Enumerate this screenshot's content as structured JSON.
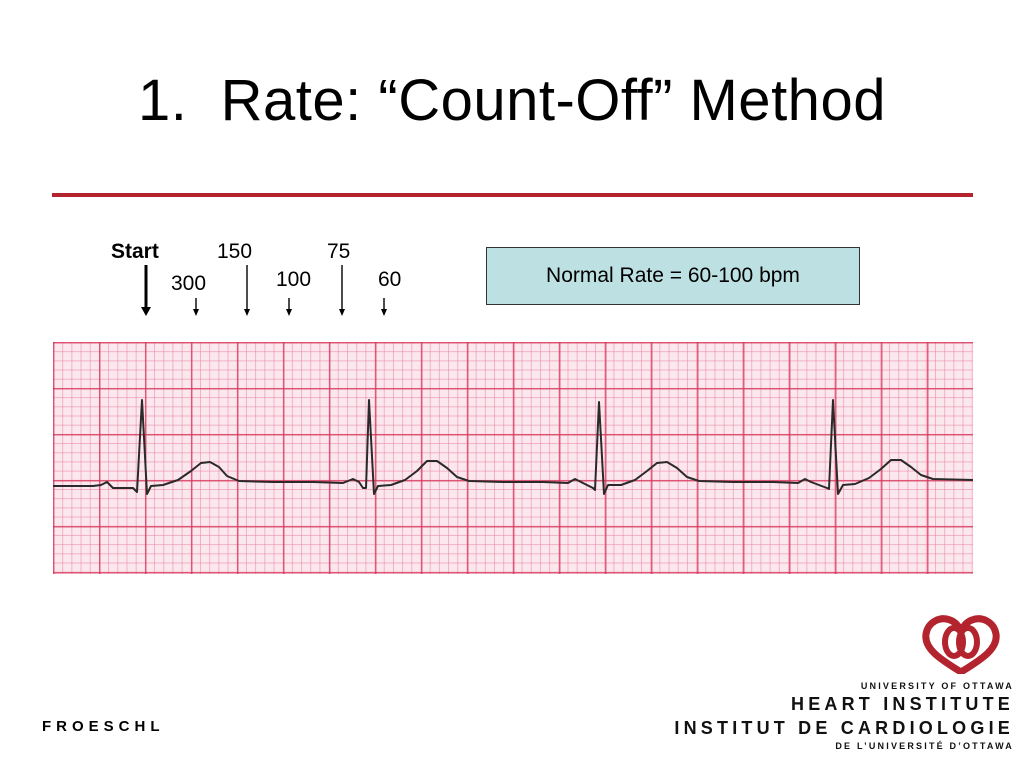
{
  "slide": {
    "title": "1.  Rate: “Count-Off” Method",
    "accent_color": "#b3242e"
  },
  "markers": {
    "start": "Start",
    "m300": "300",
    "m150": "150",
    "m100": "100",
    "m75": "75",
    "m60": "60"
  },
  "note": {
    "text": "Normal Rate = 60-100 bpm",
    "background": "#bde0e2"
  },
  "ecg": {
    "grid_color": "#d63458",
    "trace_color": "#2a2a2a"
  },
  "footer": {
    "author": "FROESCHL"
  },
  "logo": {
    "icon": "heart-rings-icon",
    "university": "UNIVERSITY OF OTTAWA",
    "heart_institute": "HEART INSTITUTE",
    "institut": "INSTITUT DE CARDIOLOGIE",
    "de_universite": "DE L’UNIVERSITÉ D’OTTAWA"
  }
}
